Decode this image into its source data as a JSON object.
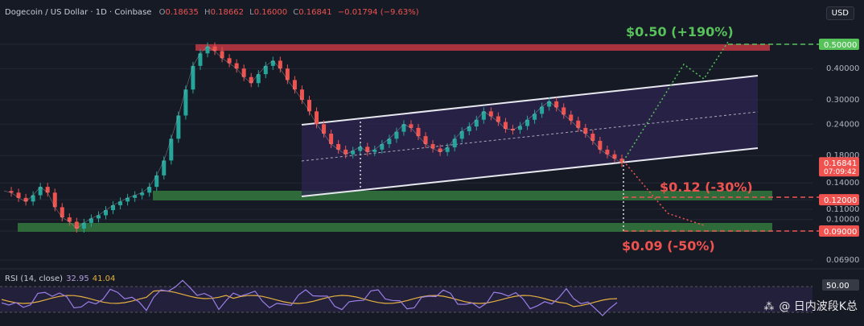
{
  "header": {
    "symbol": "Dogecoin / US Dollar · 1D · Coinbase",
    "o_label": "O",
    "o_value": "0.18635",
    "h_label": "H",
    "h_value": "0.18662",
    "l_label": "L",
    "l_value": "0.16000",
    "c_label": "C",
    "c_value": "0.16841",
    "change": "−0.01794 (−9.63%)"
  },
  "currency_button": "USD",
  "rsi": {
    "label": "RSI (14, close)",
    "value_rsi": "32.95",
    "value_ma": "41.04",
    "tick_label": "50.00",
    "line_color": "#9b7fe6",
    "ma_color": "#e6b040"
  },
  "watermark": {
    "logo": "⁂",
    "text": "@ 日内波段K总"
  },
  "colors": {
    "background": "#161a25",
    "channel_fill": "#2d2550",
    "resistance_zone": "#a8323e",
    "support_zone": "#2f6b3a",
    "bull_target": "#57c15a",
    "bear_target": "#ef5350"
  },
  "chart_data": {
    "type": "line",
    "title": "Dogecoin / US Dollar · 1D · Coinbase",
    "y_scale": "log",
    "ylim": [
      0.06,
      0.6
    ],
    "y_ticks": [
      "0.50000",
      "0.40000",
      "0.30000",
      "0.24000",
      "0.18000",
      "0.14000",
      "0.12000",
      "0.11000",
      "0.10000",
      "0.09000",
      "0.06900"
    ],
    "price_labels": [
      {
        "text": "0.50000",
        "color": "#57c15a"
      },
      {
        "text": "0.16841",
        "sub": "07:09:42",
        "color": "#ef5350"
      },
      {
        "text": "0.12000",
        "color": "#ef5350"
      },
      {
        "text": "0.09000",
        "color": "#ef5350"
      }
    ],
    "annotations": [
      {
        "text": "$0.50 (+190%)",
        "color": "#57c15a"
      },
      {
        "text": "$0.12 (-30%)",
        "color": "#ef5350"
      },
      {
        "text": "$0.09 (-50%)",
        "color": "#ef5350"
      }
    ],
    "zones": [
      {
        "name": "resistance",
        "price": 0.5
      },
      {
        "name": "support-1",
        "price": 0.12
      },
      {
        "name": "support-2",
        "price": 0.09
      }
    ],
    "series": [
      {
        "values": [
          0.13,
          0.128,
          0.122,
          0.118,
          0.125,
          0.135,
          0.128,
          0.112,
          0.102,
          0.098,
          0.092,
          0.097,
          0.101,
          0.104,
          0.109,
          0.114,
          0.118,
          0.122,
          0.125,
          0.128,
          0.135,
          0.15,
          0.172,
          0.21,
          0.26,
          0.33,
          0.41,
          0.46,
          0.49,
          0.47,
          0.44,
          0.42,
          0.4,
          0.37,
          0.35,
          0.38,
          0.41,
          0.43,
          0.4,
          0.36,
          0.33,
          0.3,
          0.27,
          0.24,
          0.22,
          0.2,
          0.19,
          0.182,
          0.188,
          0.195,
          0.186,
          0.19,
          0.2,
          0.21,
          0.224,
          0.24,
          0.232,
          0.215,
          0.2,
          0.192,
          0.186,
          0.194,
          0.21,
          0.225,
          0.235,
          0.25,
          0.27,
          0.258,
          0.245,
          0.23,
          0.228,
          0.236,
          0.25,
          0.264,
          0.282,
          0.296,
          0.28,
          0.262,
          0.248,
          0.232,
          0.22,
          0.206,
          0.19,
          0.182,
          0.175,
          0.168
        ]
      }
    ]
  }
}
